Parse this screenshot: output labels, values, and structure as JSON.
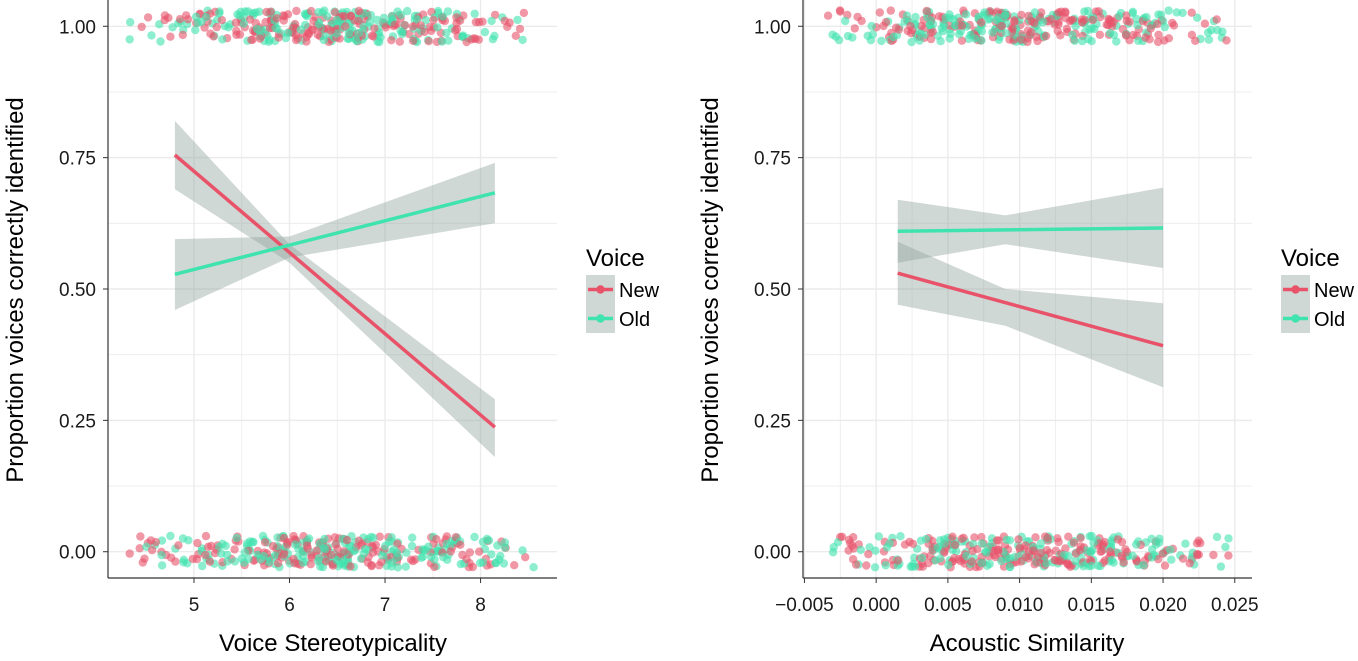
{
  "colors": {
    "new": "#e8536a",
    "old": "#3fe3ae",
    "ribbon": "#8fa39c",
    "grid": "#ebebeb"
  },
  "chart_data": [
    {
      "type": "scatter",
      "title": "",
      "xlabel": "Voice Stereotypicality",
      "ylabel": "Proportion voices correctly identified",
      "xlim": [
        4.1,
        8.8
      ],
      "ylim": [
        -0.05,
        1.05
      ],
      "xticks": [
        5,
        6,
        7,
        8
      ],
      "xtick_labels": [
        "5",
        "6",
        "7",
        "8"
      ],
      "yticks": [
        0,
        0.25,
        0.5,
        0.75,
        1
      ],
      "ytick_labels": [
        "0.00",
        "0.25",
        "0.50",
        "0.75",
        "1.00"
      ],
      "point_x_range": [
        4.3,
        8.6
      ],
      "series": [
        {
          "name": "New",
          "line": {
            "x": [
              4.8,
              8.15
            ],
            "y": [
              0.755,
              0.237
            ]
          },
          "ribbon": {
            "x": [
              4.8,
              6.0,
              8.15
            ],
            "lower": [
              0.69,
              0.55,
              0.18
            ],
            "upper": [
              0.82,
              0.585,
              0.29
            ]
          }
        },
        {
          "name": "Old",
          "line": {
            "x": [
              4.8,
              8.15
            ],
            "y": [
              0.528,
              0.683
            ]
          },
          "ribbon": {
            "x": [
              4.8,
              6.0,
              8.15
            ],
            "lower": [
              0.46,
              0.56,
              0.625
            ],
            "upper": [
              0.595,
              0.6,
              0.74
            ]
          }
        }
      ],
      "legend": {
        "title": "Voice",
        "entries": [
          "New",
          "Old"
        ],
        "position": "right"
      }
    },
    {
      "type": "scatter",
      "title": "",
      "xlabel": "Acoustic Similarity",
      "ylabel": "Proportion voices correctly identified",
      "xlim": [
        -0.0051,
        0.0262
      ],
      "ylim": [
        -0.05,
        1.05
      ],
      "xticks": [
        -0.005,
        0,
        0.005,
        0.01,
        0.015,
        0.02,
        0.025
      ],
      "xtick_labels": [
        "−0.005",
        "0.000",
        "0.005",
        "0.010",
        "0.015",
        "0.020",
        "0.025"
      ],
      "yticks": [
        0,
        0.25,
        0.5,
        0.75,
        1
      ],
      "ytick_labels": [
        "0.00",
        "0.25",
        "0.50",
        "0.75",
        "1.00"
      ],
      "point_x_range": [
        -0.0035,
        0.025
      ],
      "series": [
        {
          "name": "New",
          "line": {
            "x": [
              0.0015,
              0.02
            ],
            "y": [
              0.53,
              0.392
            ]
          },
          "ribbon": {
            "x": [
              0.0015,
              0.009,
              0.02
            ],
            "lower": [
              0.47,
              0.43,
              0.313
            ],
            "upper": [
              0.59,
              0.5,
              0.473
            ]
          }
        },
        {
          "name": "Old",
          "line": {
            "x": [
              0.0015,
              0.02
            ],
            "y": [
              0.61,
              0.616
            ]
          },
          "ribbon": {
            "x": [
              0.0015,
              0.009,
              0.02
            ],
            "lower": [
              0.55,
              0.585,
              0.54
            ],
            "upper": [
              0.67,
              0.64,
              0.693
            ]
          }
        }
      ],
      "legend": {
        "title": "Voice",
        "entries": [
          "New",
          "Old"
        ],
        "position": "right"
      }
    }
  ]
}
